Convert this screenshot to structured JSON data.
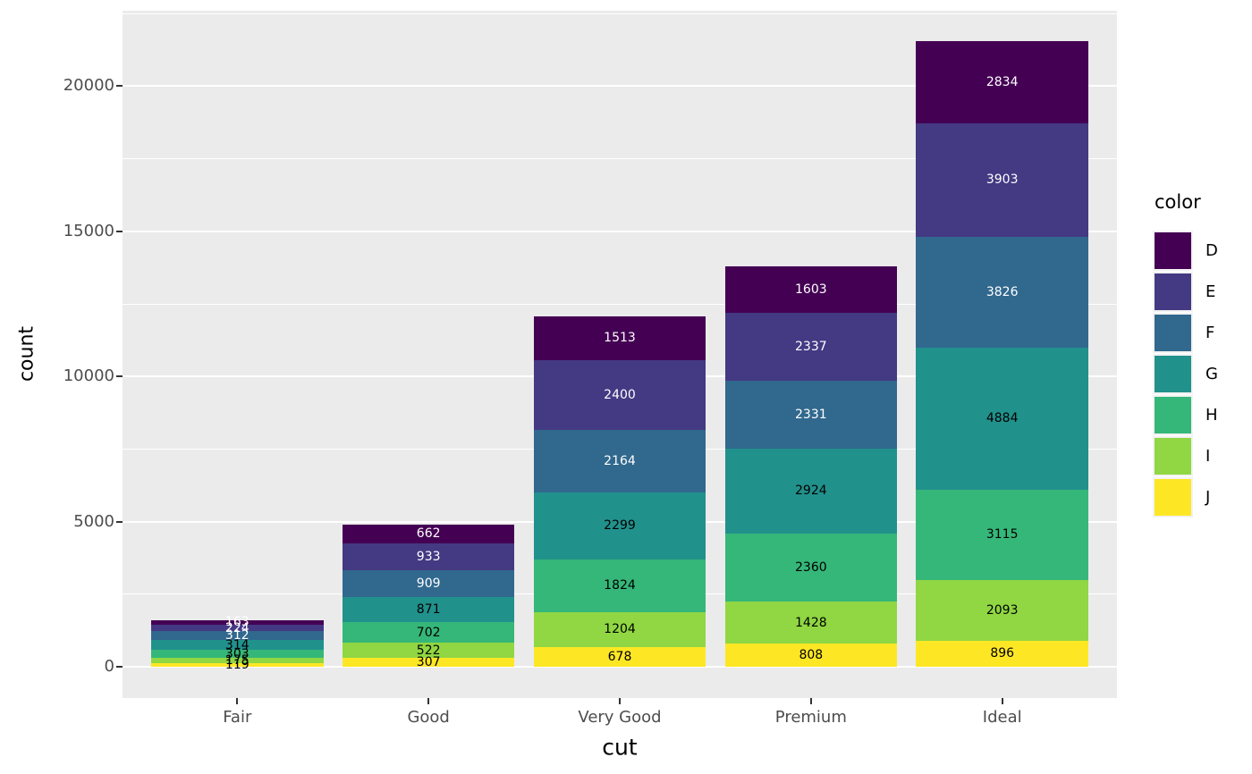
{
  "style": {
    "figure_bg": "#FFFFFF",
    "panel_bg": "#EBEBEB",
    "grid_color": "#FFFFFF",
    "axis_text_color": "#4D4D4D",
    "axis_title_color": "#000000",
    "tick_mark_color": "#333333"
  },
  "axes": {
    "x": {
      "title": "cut",
      "tick_labels": [
        "Fair",
        "Good",
        "Very Good",
        "Premium",
        "Ideal"
      ]
    },
    "y": {
      "title": "count",
      "tick_labels": [
        "0",
        "5000",
        "10000",
        "15000",
        "20000"
      ],
      "tick_values": [
        0,
        5000,
        10000,
        15000,
        20000
      ],
      "minor_tick_values": [
        2500,
        7500,
        12500,
        17500,
        22500
      ]
    }
  },
  "legend": {
    "title": "color",
    "position": "right",
    "entries": [
      {
        "label": "D",
        "color": "#440154"
      },
      {
        "label": "E",
        "color": "#443983"
      },
      {
        "label": "F",
        "color": "#31688E"
      },
      {
        "label": "G",
        "color": "#21918C"
      },
      {
        "label": "H",
        "color": "#35B779"
      },
      {
        "label": "I",
        "color": "#90D743"
      },
      {
        "label": "J",
        "color": "#FDE725"
      }
    ]
  },
  "chart_data": {
    "type": "bar",
    "stacked": true,
    "xlabel": "cut",
    "ylabel": "count",
    "categories": [
      "Fair",
      "Good",
      "Very Good",
      "Premium",
      "Ideal"
    ],
    "series": [
      {
        "name": "D",
        "color": "#440154",
        "label_color": "#FFFFFF",
        "values": [
          163,
          662,
          1513,
          1603,
          2834
        ]
      },
      {
        "name": "E",
        "color": "#443983",
        "label_color": "#FFFFFF",
        "values": [
          224,
          933,
          2400,
          2337,
          3903
        ]
      },
      {
        "name": "F",
        "color": "#31688E",
        "label_color": "#FFFFFF",
        "values": [
          312,
          909,
          2164,
          2331,
          3826
        ]
      },
      {
        "name": "G",
        "color": "#21918C",
        "label_color": "#000000",
        "values": [
          314,
          871,
          2299,
          2924,
          4884
        ]
      },
      {
        "name": "H",
        "color": "#35B779",
        "label_color": "#000000",
        "values": [
          303,
          702,
          1824,
          2360,
          3115
        ]
      },
      {
        "name": "I",
        "color": "#90D743",
        "label_color": "#000000",
        "values": [
          175,
          522,
          1204,
          1428,
          2093
        ]
      },
      {
        "name": "J",
        "color": "#FDE725",
        "label_color": "#000000",
        "values": [
          119,
          307,
          678,
          808,
          896
        ]
      }
    ],
    "totals": [
      1610,
      4906,
      12082,
      13791,
      21551
    ],
    "ylim": [
      0,
      22600
    ],
    "grid": true,
    "legend_position": "right",
    "bar_value_labels_shown": true
  }
}
